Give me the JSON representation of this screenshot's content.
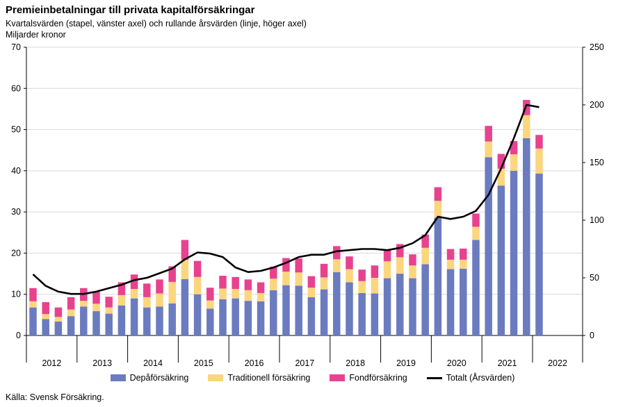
{
  "chart_data": {
    "type": "bar",
    "title": "Premieinbetalningar till privata kapitalförsäkringar",
    "subtitle": "Kvartalsvärden (stapel, vänster axel) och rullande årsvärden (linje, höger axel)",
    "ylabel": "Miljarder kronor",
    "stacked": true,
    "ylim": [
      0,
      70
    ],
    "yticks": [
      0,
      10,
      20,
      30,
      40,
      50,
      60,
      70
    ],
    "y2lim": [
      0,
      250
    ],
    "y2ticks": [
      0,
      50,
      100,
      150,
      200,
      250
    ],
    "years": [
      "2012",
      "2013",
      "2014",
      "2015",
      "2016",
      "2017",
      "2018",
      "2019",
      "2020",
      "2021",
      "2022"
    ],
    "series": [
      {
        "name": "Depåförsäkring",
        "color": "#6b7bbf",
        "axis": "left",
        "values": [
          6.8,
          4.0,
          3.4,
          4.7,
          7.0,
          5.9,
          5.3,
          7.3,
          9.0,
          6.8,
          7.0,
          7.8,
          13.7,
          10.0,
          6.5,
          8.8,
          9.0,
          8.4,
          8.3,
          11.0,
          12.2,
          12.1,
          9.3,
          11.2,
          15.4,
          12.9,
          10.3,
          10.2,
          13.9,
          15.0,
          13.9,
          17.3,
          28.6,
          16.1,
          16.2,
          23.2,
          43.3,
          36.4,
          40.0,
          47.9,
          39.3
        ]
      },
      {
        "name": "Traditionell försäkring",
        "color": "#fbd67e",
        "axis": "left",
        "values": [
          1.5,
          1.2,
          1.1,
          1.6,
          1.4,
          1.8,
          1.5,
          2.5,
          2.3,
          2.5,
          3.2,
          5.2,
          4.7,
          4.2,
          2.0,
          2.6,
          2.3,
          2.6,
          2.0,
          2.8,
          3.3,
          3.2,
          2.3,
          2.9,
          3.1,
          3.2,
          2.9,
          3.8,
          4.1,
          4.0,
          3.1,
          4.0,
          4.1,
          2.3,
          2.2,
          3.2,
          3.8,
          4.1,
          4.0,
          5.6,
          6.1
        ]
      },
      {
        "name": "Fondförsäkring",
        "color": "#e8428f",
        "axis": "left",
        "values": [
          3.2,
          2.9,
          2.3,
          3.0,
          3.1,
          2.9,
          2.6,
          3.1,
          3.5,
          3.3,
          3.4,
          3.8,
          4.8,
          3.9,
          3.1,
          3.1,
          2.9,
          2.6,
          2.6,
          2.9,
          3.3,
          3.4,
          2.8,
          3.3,
          3.2,
          3.1,
          2.8,
          3.0,
          2.9,
          3.2,
          2.7,
          3.2,
          3.3,
          2.6,
          2.7,
          3.2,
          3.8,
          3.6,
          3.2,
          3.7,
          3.3
        ]
      },
      {
        "name": "Totalt (Årsvärden)",
        "color": "#000000",
        "axis": "right",
        "type": "line",
        "values": [
          53,
          43,
          38,
          36,
          36,
          38,
          41,
          44,
          48,
          50,
          54,
          58,
          66,
          72,
          71,
          68,
          59,
          55,
          56,
          59,
          63,
          68,
          70,
          70,
          73,
          74,
          75,
          75,
          74,
          76,
          80,
          87,
          103,
          101,
          103,
          108,
          122,
          145,
          171,
          200,
          198
        ]
      }
    ]
  },
  "source": "Källa: Svensk Försäkring."
}
